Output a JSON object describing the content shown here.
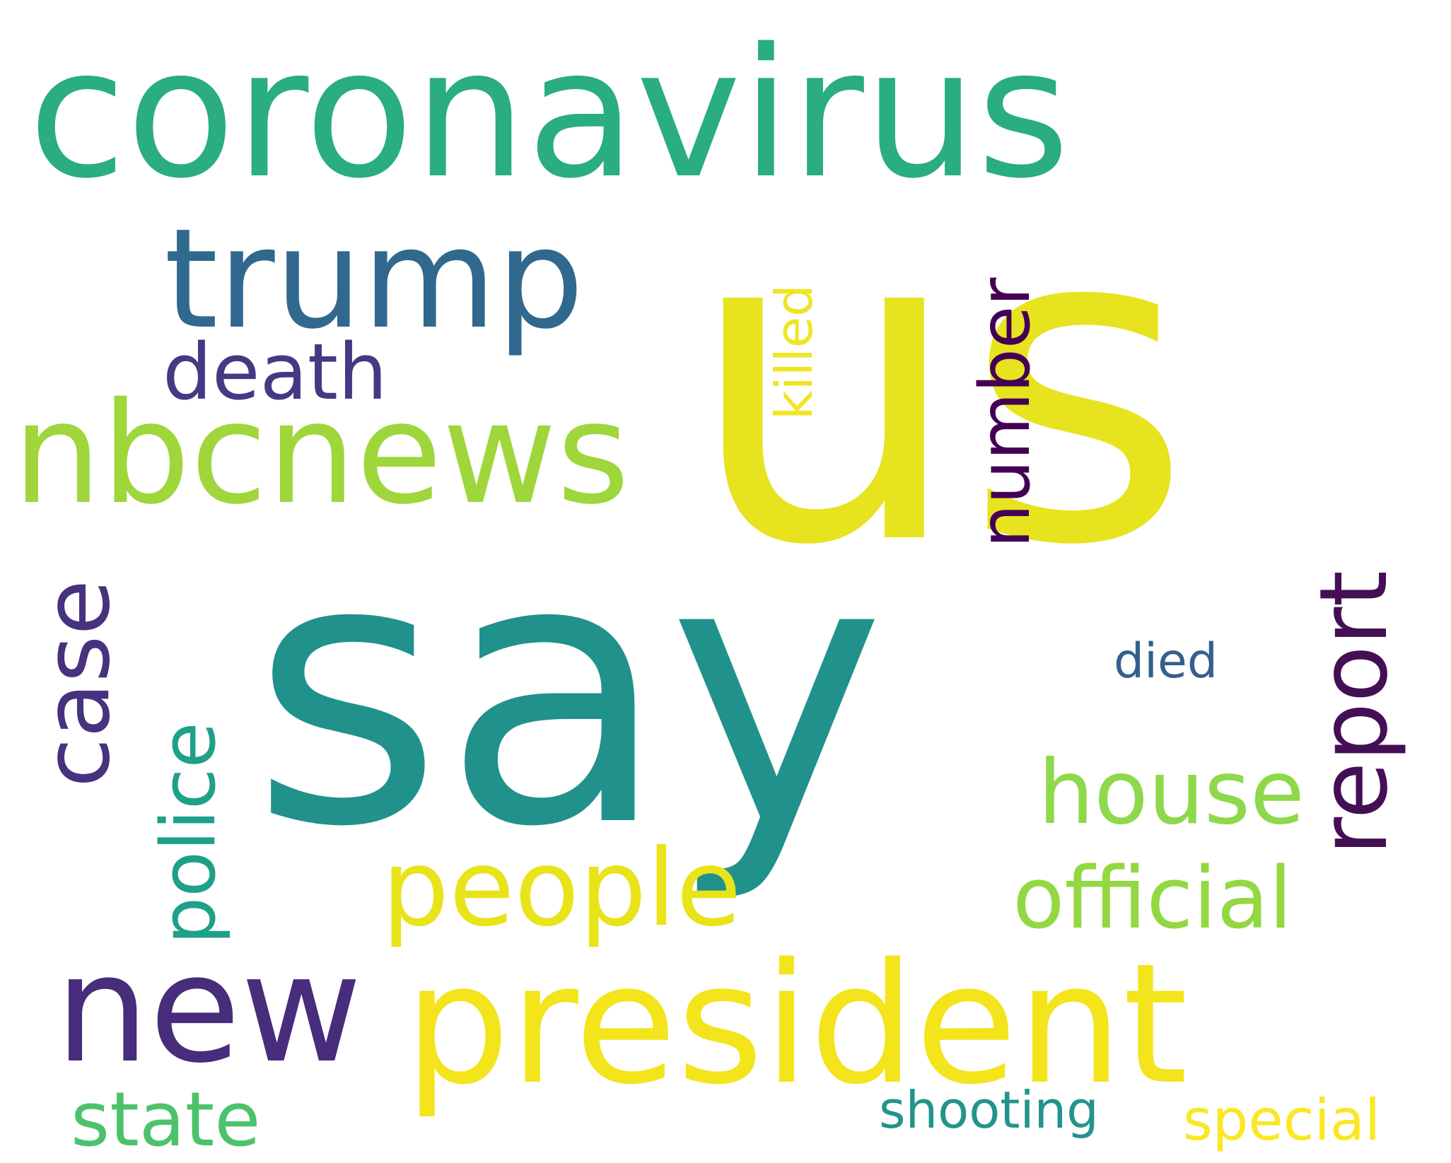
{
  "words": [
    {
      "text": "us",
      "color": "#e7e31e"
    },
    {
      "text": "say",
      "color": "#21918c"
    },
    {
      "text": "coronavirus",
      "color": "#2aad7f"
    },
    {
      "text": "president",
      "color": "#f3e41c"
    },
    {
      "text": "trump",
      "color": "#31688e"
    },
    {
      "text": "nbcnews",
      "color": "#9fd63b"
    },
    {
      "text": "new",
      "color": "#472d7b"
    },
    {
      "text": "people",
      "color": "#e8e419"
    },
    {
      "text": "report",
      "color": "#440f54"
    },
    {
      "text": "case",
      "color": "#46327e"
    },
    {
      "text": "death",
      "color": "#443a83"
    },
    {
      "text": "house",
      "color": "#8ed84b"
    },
    {
      "text": "official",
      "color": "#93d741"
    },
    {
      "text": "police",
      "color": "#1fa088"
    },
    {
      "text": "number",
      "color": "#440154"
    },
    {
      "text": "state",
      "color": "#4cc36b"
    },
    {
      "text": "killed",
      "color": "#efe524"
    },
    {
      "text": "died",
      "color": "#34608d"
    },
    {
      "text": "shooting",
      "color": "#22948b"
    },
    {
      "text": "special",
      "color": "#fbe723"
    }
  ]
}
